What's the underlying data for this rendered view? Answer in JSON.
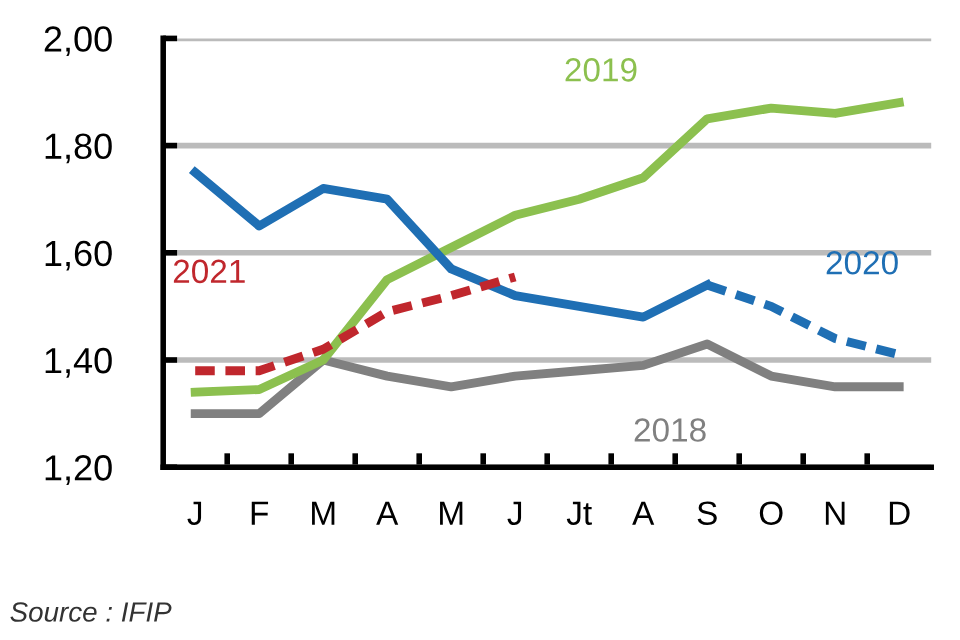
{
  "chart_data": {
    "type": "line",
    "categories": [
      "J",
      "F",
      "M",
      "A",
      "M",
      "J",
      "Jt",
      "A",
      "S",
      "O",
      "N",
      "D"
    ],
    "ylim": [
      1.2,
      2.0
    ],
    "yticks": [
      {
        "value": 1.2,
        "label": "1,20"
      },
      {
        "value": 1.4,
        "label": "1,40"
      },
      {
        "value": 1.6,
        "label": "1,60"
      },
      {
        "value": 1.8,
        "label": "1,80"
      },
      {
        "value": 2.0,
        "label": "2,00"
      }
    ],
    "grid": "y",
    "legend": false,
    "marker": "none",
    "series": [
      {
        "name": "2018",
        "color": "#808080",
        "line_style": "solid",
        "values": [
          1.3,
          1.3,
          1.4,
          1.37,
          1.35,
          1.37,
          1.38,
          1.39,
          1.43,
          1.37,
          1.35,
          1.35
        ]
      },
      {
        "name": "2019",
        "color": "#8cc04f",
        "line_style": "solid",
        "values": [
          1.34,
          1.345,
          1.4,
          1.55,
          1.61,
          1.67,
          1.7,
          1.74,
          1.85,
          1.87,
          1.86,
          1.88
        ]
      },
      {
        "color": "#1f6fb4",
        "line_style": "solid",
        "values": [
          1.75,
          1.65,
          1.72,
          1.7,
          1.57,
          1.52,
          1.5,
          1.48,
          1.54,
          null,
          null,
          null
        ]
      },
      {
        "name": "2020",
        "color": "#1f6fb4",
        "line_style": "dashed",
        "values": [
          null,
          null,
          null,
          null,
          null,
          null,
          null,
          null,
          1.54,
          1.5,
          1.44,
          1.41
        ]
      },
      {
        "name": "2021",
        "color": "#c0272d",
        "line_style": "dashed",
        "values": [
          1.38,
          1.38,
          1.42,
          1.49,
          1.52,
          1.555,
          null,
          null,
          null,
          null,
          null,
          null
        ]
      }
    ],
    "annotations": [
      "Source : IFIP"
    ]
  }
}
